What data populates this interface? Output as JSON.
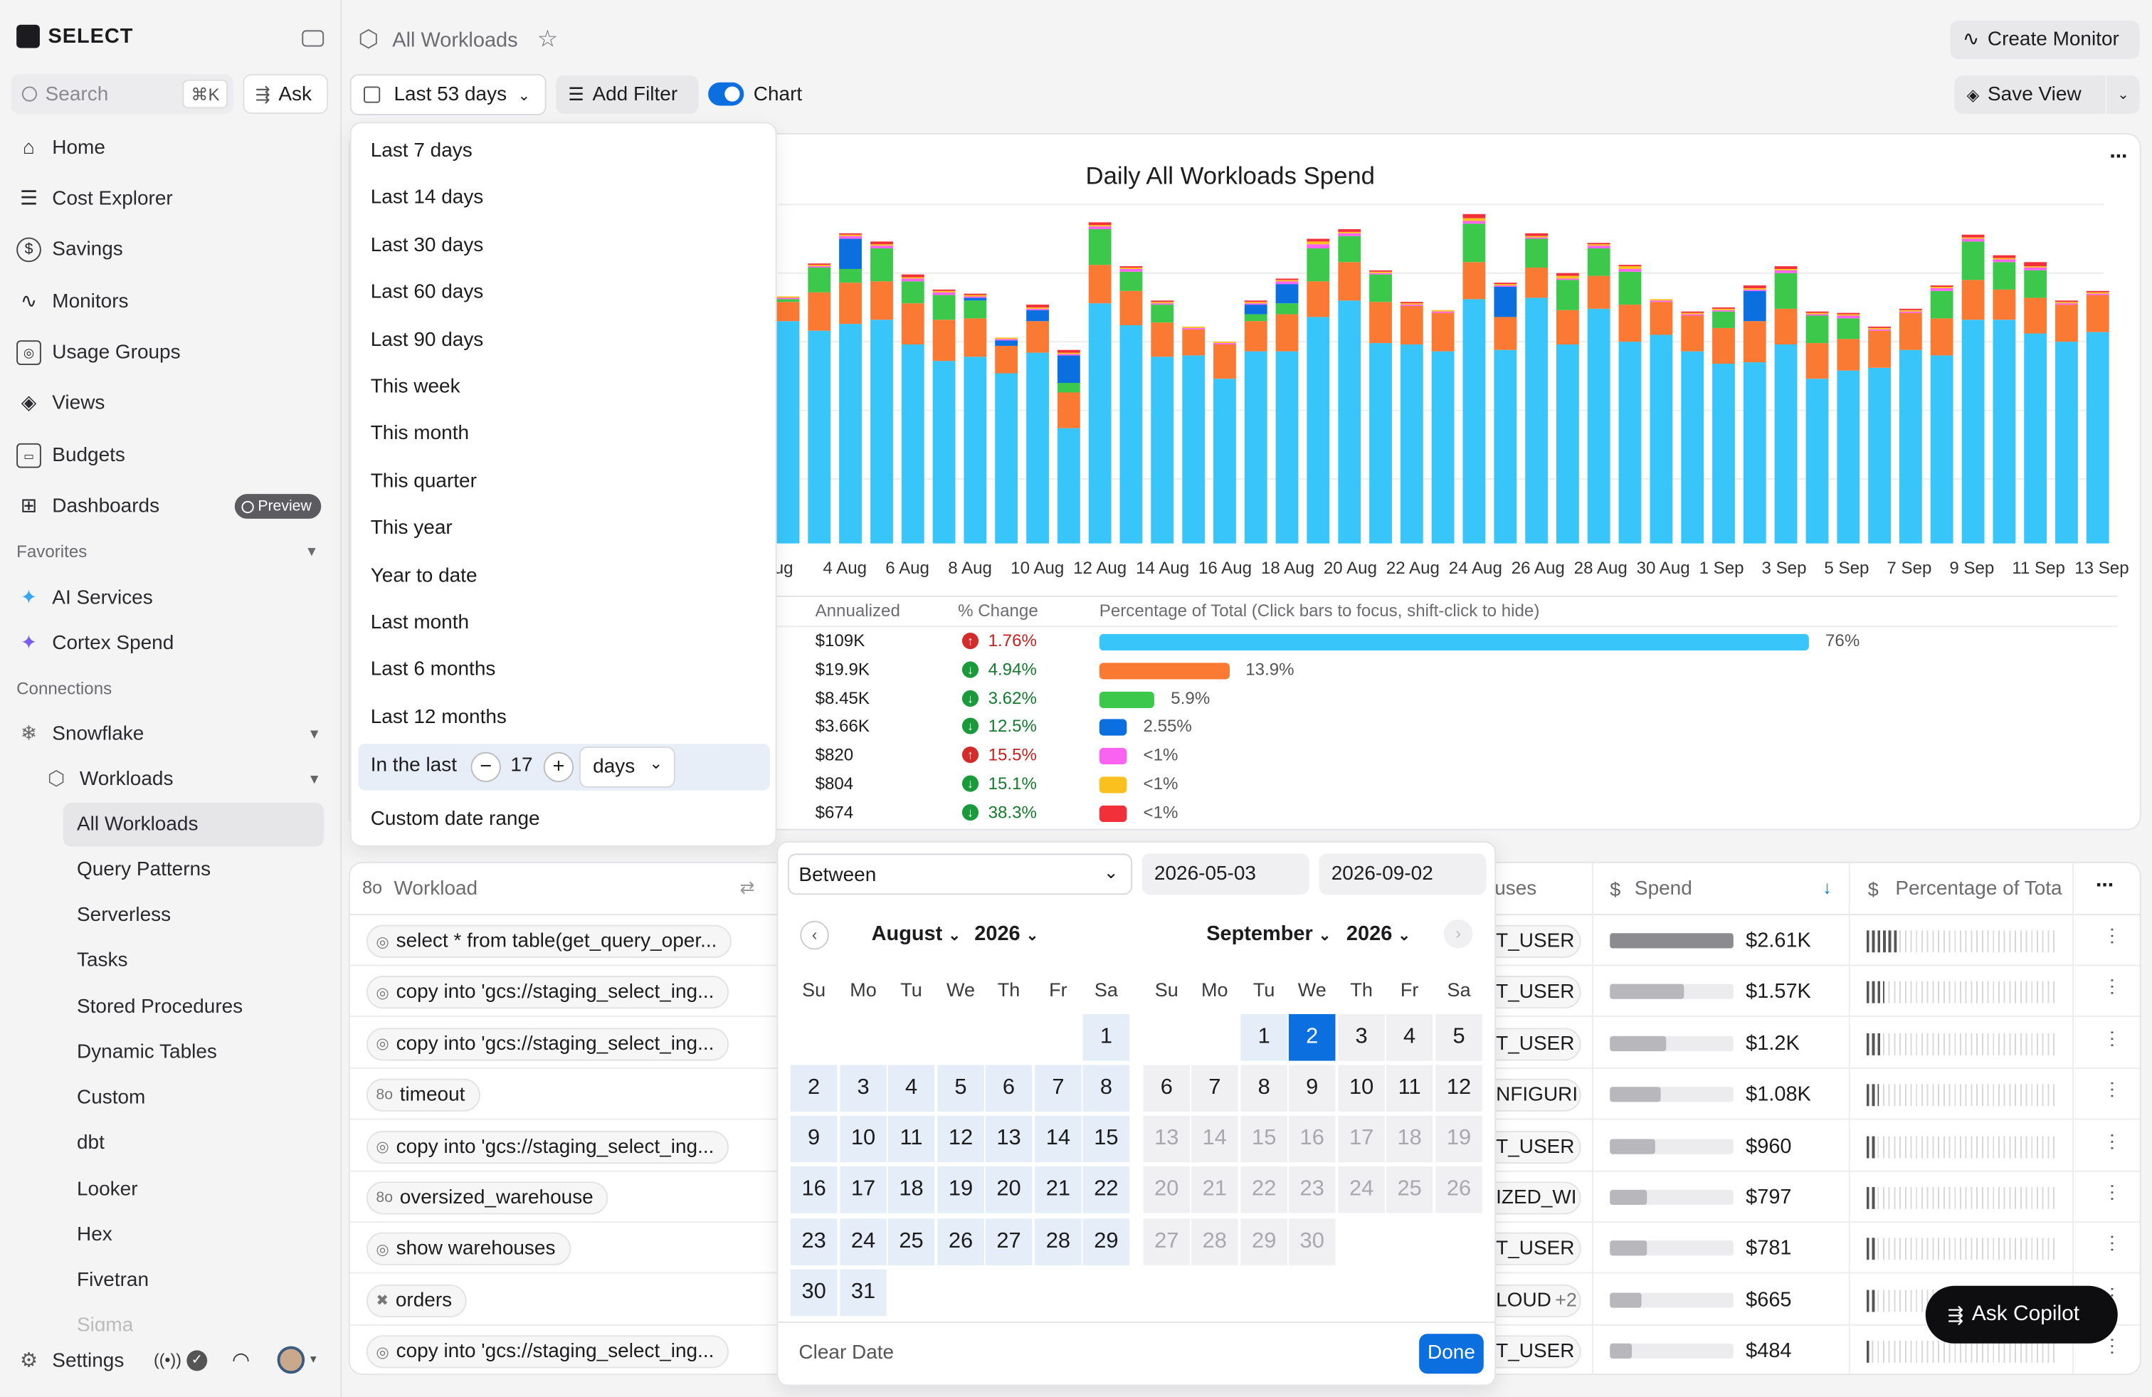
{
  "brand": "SELECT",
  "sidebar": {
    "search_placeholder": "Search",
    "search_shortcut": "⌘K",
    "ask_label": "Ask",
    "items": [
      {
        "label": "Home"
      },
      {
        "label": "Cost Explorer"
      },
      {
        "label": "Savings"
      },
      {
        "label": "Monitors"
      },
      {
        "label": "Usage Groups"
      },
      {
        "label": "Views"
      },
      {
        "label": "Budgets"
      },
      {
        "label": "Dashboards",
        "badge": "Preview"
      }
    ],
    "favorites_label": "Favorites",
    "favorites": [
      {
        "label": "AI Services"
      },
      {
        "label": "Cortex Spend"
      }
    ],
    "connections_label": "Connections",
    "snowflake": "Snowflake",
    "workloads": "Workloads",
    "sub_items": [
      "All Workloads",
      "Query Patterns",
      "Serverless",
      "Tasks",
      "Stored Procedures",
      "Dynamic Tables",
      "Custom",
      "dbt",
      "Looker",
      "Hex",
      "Fivetran",
      "Sigma"
    ],
    "settings": "Settings"
  },
  "header": {
    "title": "All Workloads",
    "create_monitor": "Create Monitor",
    "save_view": "Save View"
  },
  "toolbar": {
    "date_range": "Last 53 days",
    "add_filter": "Add Filter",
    "chart_toggle": "Chart"
  },
  "date_menu": {
    "options": [
      "Last 7 days",
      "Last 14 days",
      "Last 30 days",
      "Last 60 days",
      "Last 90 days",
      "This week",
      "This month",
      "This quarter",
      "This year",
      "Year to date",
      "Last month",
      "Last 6 months",
      "Last 12 months"
    ],
    "in_the_last_label": "In the last",
    "in_the_last_value": "17",
    "in_the_last_unit": "days",
    "custom": "Custom date range"
  },
  "chart_data": {
    "type": "bar",
    "stacked": true,
    "title": "Daily All Workloads Spend",
    "x_tick_labels": [
      "ug",
      "4 Aug",
      "6 Aug",
      "8 Aug",
      "10 Aug",
      "12 Aug",
      "14 Aug",
      "16 Aug",
      "18 Aug",
      "20 Aug",
      "22 Aug",
      "24 Aug",
      "26 Aug",
      "28 Aug",
      "30 Aug",
      "1 Sep",
      "3 Sep",
      "5 Sep",
      "7 Sep",
      "9 Sep",
      "11 Sep",
      "13 Sep"
    ],
    "series_colors": [
      "#38c6fa",
      "#fb7a33",
      "#3cc84a",
      "#0b6fe0",
      "#fa62f0",
      "#f9c01e",
      "#f2303a"
    ],
    "bars": [
      [
        162,
        14,
        2,
        0,
        1,
        1,
        0
      ],
      [
        155,
        28,
        18,
        0,
        1,
        1,
        1
      ],
      [
        160,
        30,
        10,
        22,
        2,
        1,
        1
      ],
      [
        163,
        28,
        24,
        0,
        2,
        1,
        2
      ],
      [
        145,
        30,
        16,
        0,
        2,
        1,
        2
      ],
      [
        133,
        30,
        18,
        0,
        2,
        1,
        1
      ],
      [
        136,
        28,
        13,
        2,
        1,
        1,
        1
      ],
      [
        124,
        20,
        0,
        4,
        1,
        1,
        0
      ],
      [
        139,
        23,
        0,
        8,
        1,
        1,
        2
      ],
      [
        84,
        26,
        7,
        20,
        1,
        1,
        2
      ],
      [
        175,
        28,
        26,
        0,
        2,
        1,
        2
      ],
      [
        159,
        25,
        14,
        0,
        2,
        1,
        1
      ],
      [
        136,
        25,
        13,
        0,
        1,
        1,
        1
      ],
      [
        137,
        19,
        0,
        0,
        1,
        1,
        0
      ],
      [
        120,
        25,
        0,
        0,
        1,
        1,
        0
      ],
      [
        140,
        22,
        5,
        7,
        1,
        1,
        1
      ],
      [
        140,
        27,
        8,
        14,
        2,
        1,
        1
      ],
      [
        165,
        26,
        24,
        0,
        3,
        2,
        2
      ],
      [
        177,
        28,
        19,
        0,
        2,
        1,
        2
      ],
      [
        146,
        30,
        20,
        0,
        1,
        1,
        1
      ],
      [
        145,
        28,
        0,
        0,
        1,
        1,
        1
      ],
      [
        140,
        28,
        0,
        0,
        1,
        1,
        0
      ],
      [
        178,
        27,
        28,
        0,
        2,
        2,
        3
      ],
      [
        141,
        24,
        0,
        22,
        1,
        1,
        1
      ],
      [
        179,
        22,
        21,
        0,
        1,
        1,
        2
      ],
      [
        145,
        25,
        22,
        0,
        1,
        2,
        2
      ],
      [
        171,
        24,
        20,
        0,
        2,
        1,
        1
      ],
      [
        147,
        27,
        24,
        0,
        2,
        2,
        1
      ],
      [
        152,
        24,
        0,
        0,
        1,
        1,
        0
      ],
      [
        140,
        26,
        0,
        0,
        1,
        1,
        1
      ],
      [
        131,
        26,
        12,
        0,
        1,
        1,
        1
      ],
      [
        132,
        30,
        0,
        22,
        1,
        1,
        2
      ],
      [
        145,
        26,
        26,
        0,
        2,
        1,
        2
      ],
      [
        120,
        26,
        20,
        0,
        1,
        1,
        1
      ],
      [
        126,
        23,
        15,
        0,
        2,
        1,
        1
      ],
      [
        128,
        27,
        0,
        0,
        1,
        1,
        1
      ],
      [
        141,
        27,
        0,
        0,
        1,
        1,
        1
      ],
      [
        137,
        27,
        20,
        0,
        2,
        1,
        1
      ],
      [
        163,
        29,
        28,
        0,
        2,
        1,
        2
      ],
      [
        163,
        22,
        20,
        0,
        2,
        1,
        2
      ],
      [
        153,
        26,
        20,
        0,
        2,
        1,
        3
      ],
      [
        147,
        27,
        0,
        0,
        1,
        1,
        1
      ],
      [
        154,
        27,
        0,
        0,
        1,
        1,
        1
      ]
    ],
    "summary_headers": [
      "Annualized",
      "% Change",
      "Percentage of Total (Click bars to focus, shift-click to hide)"
    ],
    "summary_rows": [
      {
        "annualized": "$109K",
        "change": "1.76%",
        "direction": "up",
        "pct_label": "76%",
        "pct": 76,
        "color": "#38c6fa"
      },
      {
        "annualized": "$19.9K",
        "change": "4.94%",
        "direction": "down",
        "pct_label": "13.9%",
        "pct": 13.9,
        "color": "#fb7a33"
      },
      {
        "annualized": "$8.45K",
        "change": "3.62%",
        "direction": "down",
        "pct_label": "5.9%",
        "pct": 5.9,
        "color": "#3cc84a"
      },
      {
        "annualized": "$3.66K",
        "change": "12.5%",
        "direction": "down",
        "pct_label": "2.55%",
        "pct": 2.55,
        "color": "#0b6fe0"
      },
      {
        "annualized": "$820",
        "change": "15.5%",
        "direction": "up",
        "pct_label": "<1%",
        "pct": 0.6,
        "color": "#fa62f0"
      },
      {
        "annualized": "$804",
        "change": "15.1%",
        "direction": "down",
        "pct_label": "<1%",
        "pct": 0.6,
        "color": "#f9c01e"
      },
      {
        "annualized": "$674",
        "change": "38.3%",
        "direction": "down",
        "pct_label": "<1%",
        "pct": 0.5,
        "color": "#f2303a"
      }
    ]
  },
  "table": {
    "headers": {
      "workload": "Workload",
      "warehouses": "uses",
      "spend": "Spend",
      "pct": "Percentage of Tota"
    },
    "rows": [
      {
        "workload": "select * from table(get_query_oper...",
        "user": "T_USER",
        "spend": "$2.61K",
        "share": 100
      },
      {
        "workload": "copy into 'gcs://staging_select_ing...",
        "user": "T_USER",
        "spend": "$1.57K",
        "share": 60
      },
      {
        "workload": "copy into 'gcs://staging_select_ing...",
        "user": "T_USER",
        "spend": "$1.2K",
        "share": 46
      },
      {
        "workload": "timeout",
        "user": "NFIGURI",
        "spend": "$1.08K",
        "share": 41
      },
      {
        "workload": "copy into 'gcs://staging_select_ing...",
        "user": "T_USER",
        "spend": "$960",
        "share": 37
      },
      {
        "workload": "oversized_warehouse",
        "user": "IZED_WI",
        "spend": "$797",
        "share": 30
      },
      {
        "workload": "show warehouses",
        "user": "T_USER",
        "spend": "$781",
        "share": 30
      },
      {
        "workload": "orders",
        "user": "LOUD",
        "extra": "+2",
        "spend": "$665",
        "share": 25
      },
      {
        "workload": "copy into 'gcs://staging_select_ing...",
        "user": "T_USER",
        "spend": "$484",
        "share": 18
      }
    ]
  },
  "date_picker": {
    "mode": "Between",
    "start": "2026-05-03",
    "end": "2026-09-02",
    "left_month": "August",
    "left_year": "2026",
    "right_month": "September",
    "right_year": "2026",
    "weekdays": [
      "Su",
      "Mo",
      "Tu",
      "We",
      "Th",
      "Fr",
      "Sa"
    ],
    "clear_label": "Clear Date",
    "done_label": "Done"
  },
  "copilot": "Ask Copilot"
}
